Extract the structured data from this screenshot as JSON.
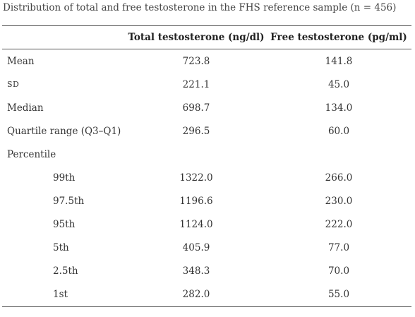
{
  "table": {
    "caption": "Distribution of total and free testosterone in the FHS reference sample (n = 456)",
    "header": [
      "Total testosterone (ng/dl)",
      "Free testosterone (pg/ml)"
    ],
    "rows": [
      {
        "label": "Mean",
        "values": [
          "723.8",
          "141.8"
        ]
      },
      {
        "label": "SD",
        "values": [
          "221.1",
          "45.0"
        ]
      },
      {
        "label": "Median",
        "values": [
          "698.7",
          "134.0"
        ]
      },
      {
        "label": "Quartile range (Q3–Q1)",
        "values": [
          "296.5",
          "60.0"
        ]
      },
      {
        "label": "Percentile",
        "rows": [
          {
            "label": "99th",
            "values": [
              "1322.0",
              "266.0"
            ]
          },
          {
            "label": "97.5th",
            "values": [
              "1196.6",
              "230.0"
            ]
          },
          {
            "label": "95th",
            "values": [
              "1124.0",
              "222.0"
            ]
          },
          {
            "label": "5th",
            "values": [
              "405.9",
              "77.0"
            ]
          },
          {
            "label": "2.5th",
            "values": [
              "348.3",
              "70.0"
            ]
          },
          {
            "label": "1st",
            "values": [
              "282.0",
              "55.0"
            ]
          }
        ]
      }
    ]
  }
}
